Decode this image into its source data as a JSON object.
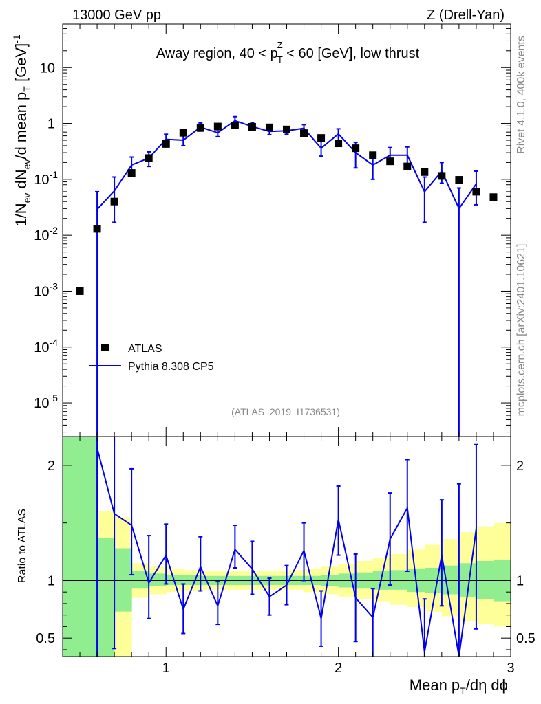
{
  "header": {
    "left_label": "13000 GeV pp",
    "right_label": "Z (Drell-Yan)"
  },
  "side": {
    "rivet_label": "Rivet 4.1.0,  400k events",
    "source_label": "mcplots.cern.ch [arXiv:2401.10621]"
  },
  "colors": {
    "mc": "#0000ee",
    "data": "#000000",
    "band_inner": "#90ee90",
    "band_outer": "#ffff99",
    "watermark": "#888888"
  },
  "chart_data": [
    {
      "type": "scatter",
      "title_parts": {
        "pre": "Away region, 40 < p",
        "sub": "T",
        "sup": "Z",
        "post": " < 60 [GeV], low thrust"
      },
      "ylabel": "1/N_ev dN_ev/d mean p_T [GeV]^-1",
      "yscale": "log",
      "xlim": [
        0.4,
        3.0
      ],
      "ylim": [
        2.5e-06,
        60
      ],
      "y_tick_labels": [
        "10^-5",
        "10^-4",
        "10^-3",
        "10^-2",
        "10^-1",
        "1",
        "10"
      ],
      "watermark": "(ATLAS_2019_I1736531)",
      "legend": {
        "position": "bottom-left",
        "entries": [
          "ATLAS",
          "Pythia 8.308 CP5"
        ]
      },
      "series": [
        {
          "name": "ATLAS",
          "kind": "markers",
          "x": [
            0.5,
            0.6,
            0.7,
            0.8,
            0.9,
            1.0,
            1.1,
            1.2,
            1.3,
            1.4,
            1.5,
            1.6,
            1.7,
            1.8,
            1.9,
            2.0,
            2.1,
            2.2,
            2.3,
            2.4,
            2.5,
            2.6,
            2.7,
            2.8,
            2.9
          ],
          "y": [
            0.001,
            0.013,
            0.04,
            0.13,
            0.24,
            0.43,
            0.68,
            0.83,
            0.88,
            0.92,
            0.87,
            0.85,
            0.78,
            0.67,
            0.55,
            0.44,
            0.36,
            0.27,
            0.21,
            0.17,
            0.135,
            0.115,
            0.098,
            0.06,
            0.048
          ]
        },
        {
          "name": "Pythia 8.308 CP5",
          "kind": "line",
          "x": [
            0.6,
            0.7,
            0.8,
            0.9,
            1.0,
            1.1,
            1.2,
            1.3,
            1.4,
            1.5,
            1.6,
            1.7,
            1.8,
            1.9,
            2.0,
            2.1,
            2.2,
            2.3,
            2.4,
            2.5,
            2.6,
            2.7,
            2.8
          ],
          "y": [
            0.029,
            0.062,
            0.18,
            0.24,
            0.52,
            0.5,
            0.86,
            0.68,
            1.12,
            0.88,
            0.72,
            0.74,
            0.82,
            0.36,
            0.65,
            0.3,
            0.18,
            0.27,
            0.27,
            0.06,
            0.14,
            0.03,
            0.083
          ],
          "y_low": [
            1e-07,
            0.017,
            0.13,
            0.17,
            0.42,
            0.4,
            0.73,
            0.58,
            0.98,
            0.78,
            0.63,
            0.64,
            0.72,
            0.26,
            0.5,
            0.16,
            0.1,
            0.19,
            0.18,
            0.017,
            0.085,
            1e-07,
            0.035
          ],
          "y_high": [
            0.06,
            0.11,
            0.25,
            0.31,
            0.64,
            0.62,
            1.02,
            0.83,
            1.32,
            1.02,
            0.84,
            0.86,
            0.95,
            0.48,
            0.8,
            0.46,
            0.27,
            0.37,
            0.38,
            0.11,
            0.2,
            0.07,
            0.14
          ]
        }
      ]
    },
    {
      "type": "line",
      "ylabel": "Ratio to ATLAS",
      "xlabel_parts": {
        "pre": "Mean p",
        "sub": "T",
        "post": "/dη dϕ"
      },
      "xlim": [
        0.4,
        3.0
      ],
      "ylim": [
        0.34,
        2.25
      ],
      "x_tick_labels": [
        "1",
        "2",
        "3"
      ],
      "y_tick_labels": [
        "0.5",
        "1",
        "2"
      ],
      "reference_line": 1.0,
      "bands": {
        "edges": [
          0.4,
          0.5,
          0.6,
          0.7,
          0.8,
          0.9,
          1.0,
          1.1,
          1.2,
          1.3,
          1.4,
          1.5,
          1.6,
          1.7,
          1.8,
          1.9,
          2.0,
          2.1,
          2.2,
          2.3,
          2.4,
          2.5,
          2.6,
          2.7,
          2.8,
          2.9,
          3.0
        ],
        "inner_low": [
          0.3,
          0.3,
          0.3,
          0.73,
          0.93,
          0.95,
          0.96,
          0.96,
          0.96,
          0.96,
          0.96,
          0.96,
          0.96,
          0.96,
          0.96,
          0.95,
          0.94,
          0.93,
          0.92,
          0.92,
          0.9,
          0.89,
          0.88,
          0.86,
          0.84,
          0.82,
          0.82
        ],
        "inner_high": [
          2.3,
          2.3,
          1.37,
          1.28,
          1.08,
          1.06,
          1.05,
          1.05,
          1.04,
          1.04,
          1.04,
          1.04,
          1.04,
          1.04,
          1.04,
          1.05,
          1.06,
          1.07,
          1.08,
          1.09,
          1.1,
          1.11,
          1.13,
          1.15,
          1.17,
          1.18,
          1.18
        ],
        "outer_low": [
          0.3,
          0.3,
          0.3,
          0.3,
          0.85,
          0.88,
          0.9,
          0.91,
          0.92,
          0.92,
          0.92,
          0.92,
          0.92,
          0.92,
          0.9,
          0.88,
          0.86,
          0.84,
          0.82,
          0.79,
          0.77,
          0.73,
          0.69,
          0.65,
          0.62,
          0.6,
          0.6
        ],
        "outer_high": [
          2.3,
          2.3,
          1.6,
          1.55,
          1.15,
          1.12,
          1.1,
          1.09,
          1.08,
          1.08,
          1.08,
          1.08,
          1.08,
          1.09,
          1.1,
          1.12,
          1.14,
          1.17,
          1.2,
          1.23,
          1.27,
          1.31,
          1.36,
          1.42,
          1.47,
          1.5,
          1.5
        ]
      },
      "series": [
        {
          "name": "Pythia 8.308 CP5 / ATLAS",
          "x": [
            0.6,
            0.7,
            0.8,
            0.9,
            1.0,
            1.1,
            1.2,
            1.3,
            1.4,
            1.5,
            1.6,
            1.7,
            1.8,
            1.9,
            2.0,
            2.1,
            2.2,
            2.3,
            2.4,
            2.5,
            2.6,
            2.7,
            2.8
          ],
          "y": [
            2.15,
            1.58,
            1.48,
            0.98,
            1.22,
            0.75,
            1.12,
            0.78,
            1.27,
            1.1,
            0.86,
            0.96,
            1.26,
            0.67,
            1.53,
            0.85,
            0.68,
            1.36,
            1.63,
            0.38,
            1.22,
            0.25,
            1.45
          ],
          "y_low": [
            0.2,
            0.41,
            1.05,
            0.67,
            0.97,
            0.54,
            0.91,
            0.62,
            1.11,
            0.88,
            0.7,
            0.79,
            1.0,
            0.43,
            1.22,
            0.47,
            0.3,
            0.96,
            1.08,
            0.1,
            0.78,
            0.1,
            0.58
          ],
          "y_high": [
            2.3,
            2.3,
            1.97,
            1.39,
            1.49,
            0.97,
            1.38,
            0.99,
            1.48,
            1.34,
            1.02,
            1.13,
            1.5,
            0.91,
            1.82,
            1.23,
            0.93,
            1.76,
            2.05,
            0.84,
            1.7,
            1.84,
            2.18
          ]
        }
      ]
    }
  ]
}
